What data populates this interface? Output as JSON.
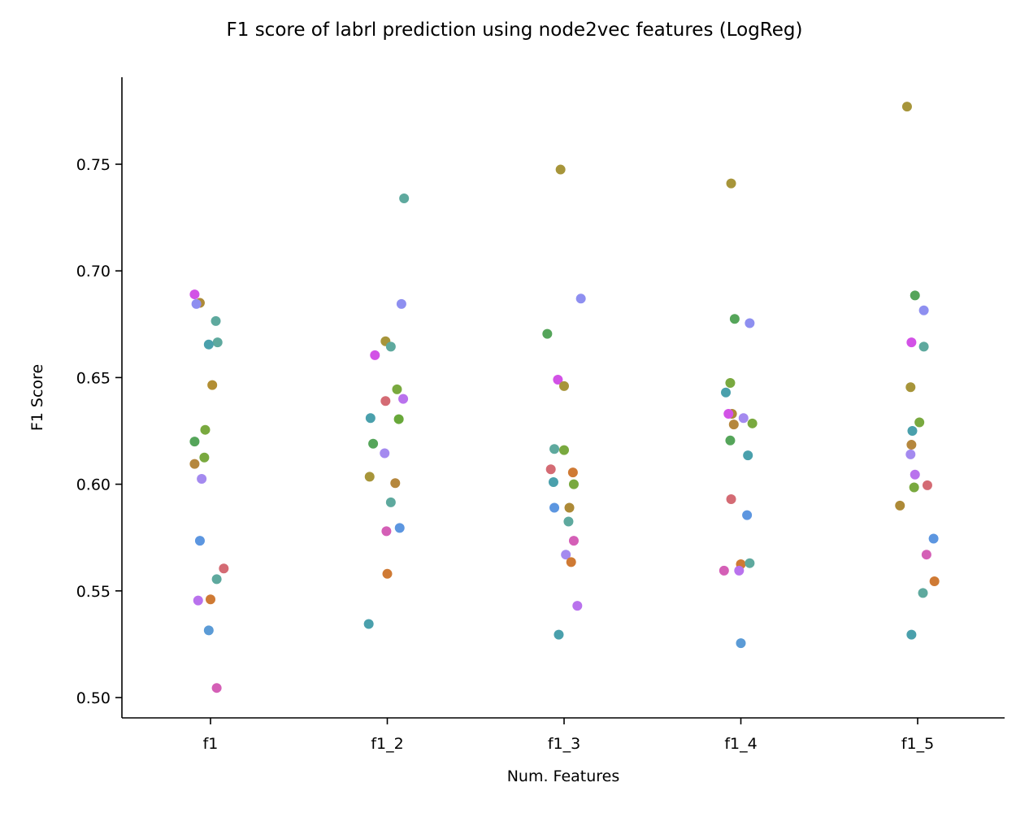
{
  "chart_data": {
    "type": "scatter",
    "title": "F1 score of labrl prediction using node2vec features (LogReg)",
    "xlabel": "Num. Features",
    "ylabel": "F1 Score",
    "categories": [
      "f1",
      "f1_2",
      "f1_3",
      "f1_4",
      "f1_5"
    ],
    "ylim": [
      0.49,
      0.79
    ],
    "yticks": [
      0.5,
      0.55,
      0.6,
      0.65,
      0.7,
      0.75
    ],
    "ytick_labels": [
      "0.50",
      "0.55",
      "0.60",
      "0.65",
      "0.70",
      "0.75"
    ],
    "grid": false,
    "points": [
      {
        "cat": 0,
        "jitter": -0.09,
        "value": 0.689,
        "color": "#d252e6"
      },
      {
        "cat": 0,
        "jitter": -0.06,
        "value": 0.685,
        "color": "#ad8a37"
      },
      {
        "cat": 0,
        "jitter": -0.08,
        "value": 0.6845,
        "color": "#8e8ff0"
      },
      {
        "cat": 0,
        "jitter": 0.03,
        "value": 0.6765,
        "color": "#5ea99e"
      },
      {
        "cat": 0,
        "jitter": 0.04,
        "value": 0.6665,
        "color": "#5ea99e"
      },
      {
        "cat": 0,
        "jitter": -0.01,
        "value": 0.6655,
        "color": "#4aa0ac"
      },
      {
        "cat": 0,
        "jitter": 0.01,
        "value": 0.6465,
        "color": "#b28e33"
      },
      {
        "cat": 0,
        "jitter": -0.03,
        "value": 0.6255,
        "color": "#79a93f"
      },
      {
        "cat": 0,
        "jitter": -0.09,
        "value": 0.62,
        "color": "#55a55a"
      },
      {
        "cat": 0,
        "jitter": -0.035,
        "value": 0.6125,
        "color": "#79a93f"
      },
      {
        "cat": 0,
        "jitter": -0.09,
        "value": 0.6095,
        "color": "#b5873d"
      },
      {
        "cat": 0,
        "jitter": -0.05,
        "value": 0.6025,
        "color": "#a48aef"
      },
      {
        "cat": 0,
        "jitter": -0.06,
        "value": 0.5735,
        "color": "#5c96e0"
      },
      {
        "cat": 0,
        "jitter": 0.075,
        "value": 0.5605,
        "color": "#d46b74"
      },
      {
        "cat": 0,
        "jitter": 0.035,
        "value": 0.5555,
        "color": "#5ea99e"
      },
      {
        "cat": 0,
        "jitter": 0.0,
        "value": 0.546,
        "color": "#cf7a34"
      },
      {
        "cat": 0,
        "jitter": -0.07,
        "value": 0.5455,
        "color": "#b972ed"
      },
      {
        "cat": 0,
        "jitter": -0.01,
        "value": 0.5315,
        "color": "#5b9bd6"
      },
      {
        "cat": 0,
        "jitter": 0.035,
        "value": 0.5045,
        "color": "#d45fb6"
      },
      {
        "cat": 1,
        "jitter": 0.095,
        "value": 0.734,
        "color": "#5ea99e"
      },
      {
        "cat": 1,
        "jitter": 0.08,
        "value": 0.6845,
        "color": "#8e8ff0"
      },
      {
        "cat": 1,
        "jitter": -0.01,
        "value": 0.667,
        "color": "#a7953a"
      },
      {
        "cat": 1,
        "jitter": 0.02,
        "value": 0.6645,
        "color": "#5ea99e"
      },
      {
        "cat": 1,
        "jitter": -0.07,
        "value": 0.6605,
        "color": "#d252e6"
      },
      {
        "cat": 1,
        "jitter": 0.055,
        "value": 0.6445,
        "color": "#79a93f"
      },
      {
        "cat": 1,
        "jitter": 0.09,
        "value": 0.64,
        "color": "#b972ed"
      },
      {
        "cat": 1,
        "jitter": -0.01,
        "value": 0.639,
        "color": "#d46b74"
      },
      {
        "cat": 1,
        "jitter": -0.095,
        "value": 0.631,
        "color": "#4aa0ac"
      },
      {
        "cat": 1,
        "jitter": 0.065,
        "value": 0.6305,
        "color": "#68a83a"
      },
      {
        "cat": 1,
        "jitter": -0.08,
        "value": 0.619,
        "color": "#55a55a"
      },
      {
        "cat": 1,
        "jitter": -0.015,
        "value": 0.6145,
        "color": "#a48aef"
      },
      {
        "cat": 1,
        "jitter": -0.1,
        "value": 0.6035,
        "color": "#a7953a"
      },
      {
        "cat": 1,
        "jitter": 0.045,
        "value": 0.6005,
        "color": "#b5873d"
      },
      {
        "cat": 1,
        "jitter": 0.02,
        "value": 0.5915,
        "color": "#5ea99e"
      },
      {
        "cat": 1,
        "jitter": 0.07,
        "value": 0.5795,
        "color": "#5c96e0"
      },
      {
        "cat": 1,
        "jitter": -0.005,
        "value": 0.578,
        "color": "#d45fb6"
      },
      {
        "cat": 1,
        "jitter": 0.0,
        "value": 0.558,
        "color": "#cf7a34"
      },
      {
        "cat": 1,
        "jitter": -0.105,
        "value": 0.5345,
        "color": "#4aa0ac"
      },
      {
        "cat": 2,
        "jitter": -0.02,
        "value": 0.7475,
        "color": "#a7953a"
      },
      {
        "cat": 2,
        "jitter": 0.095,
        "value": 0.687,
        "color": "#8e8ff0"
      },
      {
        "cat": 2,
        "jitter": -0.095,
        "value": 0.6705,
        "color": "#55a55a"
      },
      {
        "cat": 2,
        "jitter": -0.035,
        "value": 0.649,
        "color": "#d252e6"
      },
      {
        "cat": 2,
        "jitter": 0.0,
        "value": 0.646,
        "color": "#a7953a"
      },
      {
        "cat": 2,
        "jitter": -0.055,
        "value": 0.6165,
        "color": "#5ea99e"
      },
      {
        "cat": 2,
        "jitter": 0.0,
        "value": 0.616,
        "color": "#79a93f"
      },
      {
        "cat": 2,
        "jitter": -0.075,
        "value": 0.607,
        "color": "#d46b74"
      },
      {
        "cat": 2,
        "jitter": 0.05,
        "value": 0.6055,
        "color": "#cf7a34"
      },
      {
        "cat": 2,
        "jitter": -0.06,
        "value": 0.601,
        "color": "#4aa0ac"
      },
      {
        "cat": 2,
        "jitter": 0.055,
        "value": 0.6,
        "color": "#79a93f"
      },
      {
        "cat": 2,
        "jitter": -0.055,
        "value": 0.589,
        "color": "#5c96e0"
      },
      {
        "cat": 2,
        "jitter": 0.03,
        "value": 0.589,
        "color": "#ad8a37"
      },
      {
        "cat": 2,
        "jitter": 0.025,
        "value": 0.5825,
        "color": "#5ea99e"
      },
      {
        "cat": 2,
        "jitter": 0.055,
        "value": 0.5735,
        "color": "#d45fb6"
      },
      {
        "cat": 2,
        "jitter": 0.01,
        "value": 0.567,
        "color": "#a48aef"
      },
      {
        "cat": 2,
        "jitter": 0.04,
        "value": 0.5635,
        "color": "#cf7a34"
      },
      {
        "cat": 2,
        "jitter": 0.075,
        "value": 0.543,
        "color": "#b972ed"
      },
      {
        "cat": 2,
        "jitter": -0.03,
        "value": 0.5295,
        "color": "#4aa0ac"
      },
      {
        "cat": 3,
        "jitter": -0.055,
        "value": 0.741,
        "color": "#a7953a"
      },
      {
        "cat": 3,
        "jitter": -0.035,
        "value": 0.6775,
        "color": "#55a55a"
      },
      {
        "cat": 3,
        "jitter": 0.05,
        "value": 0.6755,
        "color": "#8e8ff0"
      },
      {
        "cat": 3,
        "jitter": -0.06,
        "value": 0.6475,
        "color": "#79a93f"
      },
      {
        "cat": 3,
        "jitter": -0.085,
        "value": 0.643,
        "color": "#4aa0ac"
      },
      {
        "cat": 3,
        "jitter": -0.05,
        "value": 0.633,
        "color": "#ad8a37"
      },
      {
        "cat": 3,
        "jitter": -0.07,
        "value": 0.633,
        "color": "#d252e6"
      },
      {
        "cat": 3,
        "jitter": 0.015,
        "value": 0.631,
        "color": "#a48aef"
      },
      {
        "cat": 3,
        "jitter": 0.065,
        "value": 0.6285,
        "color": "#79a93f"
      },
      {
        "cat": 3,
        "jitter": -0.04,
        "value": 0.628,
        "color": "#b5873d"
      },
      {
        "cat": 3,
        "jitter": -0.06,
        "value": 0.6205,
        "color": "#55a55a"
      },
      {
        "cat": 3,
        "jitter": 0.04,
        "value": 0.6135,
        "color": "#4aa0ac"
      },
      {
        "cat": 3,
        "jitter": -0.055,
        "value": 0.593,
        "color": "#d46b74"
      },
      {
        "cat": 3,
        "jitter": 0.035,
        "value": 0.5855,
        "color": "#5c96e0"
      },
      {
        "cat": 3,
        "jitter": 0.0,
        "value": 0.5625,
        "color": "#cf7a34"
      },
      {
        "cat": 3,
        "jitter": 0.05,
        "value": 0.563,
        "color": "#5ea99e"
      },
      {
        "cat": 3,
        "jitter": -0.095,
        "value": 0.5595,
        "color": "#d45fb6"
      },
      {
        "cat": 3,
        "jitter": -0.01,
        "value": 0.5595,
        "color": "#b972ed"
      },
      {
        "cat": 3,
        "jitter": 0.0,
        "value": 0.5255,
        "color": "#5b9bd6"
      },
      {
        "cat": 4,
        "jitter": -0.06,
        "value": 0.777,
        "color": "#a7953a"
      },
      {
        "cat": 4,
        "jitter": -0.015,
        "value": 0.6885,
        "color": "#55a55a"
      },
      {
        "cat": 4,
        "jitter": 0.035,
        "value": 0.6815,
        "color": "#8e8ff0"
      },
      {
        "cat": 4,
        "jitter": -0.035,
        "value": 0.6665,
        "color": "#d252e6"
      },
      {
        "cat": 4,
        "jitter": 0.035,
        "value": 0.6645,
        "color": "#5ea99e"
      },
      {
        "cat": 4,
        "jitter": -0.04,
        "value": 0.6455,
        "color": "#a7953a"
      },
      {
        "cat": 4,
        "jitter": 0.01,
        "value": 0.629,
        "color": "#79a93f"
      },
      {
        "cat": 4,
        "jitter": -0.03,
        "value": 0.625,
        "color": "#4aa0ac"
      },
      {
        "cat": 4,
        "jitter": -0.035,
        "value": 0.6185,
        "color": "#b5873d"
      },
      {
        "cat": 4,
        "jitter": -0.04,
        "value": 0.614,
        "color": "#a48aef"
      },
      {
        "cat": 4,
        "jitter": -0.015,
        "value": 0.6045,
        "color": "#b972ed"
      },
      {
        "cat": 4,
        "jitter": 0.055,
        "value": 0.5995,
        "color": "#d46b74"
      },
      {
        "cat": 4,
        "jitter": -0.02,
        "value": 0.5985,
        "color": "#79a93f"
      },
      {
        "cat": 4,
        "jitter": -0.1,
        "value": 0.59,
        "color": "#ad8a37"
      },
      {
        "cat": 4,
        "jitter": 0.09,
        "value": 0.5745,
        "color": "#5c96e0"
      },
      {
        "cat": 4,
        "jitter": 0.05,
        "value": 0.567,
        "color": "#d45fb6"
      },
      {
        "cat": 4,
        "jitter": 0.095,
        "value": 0.5545,
        "color": "#cf7a34"
      },
      {
        "cat": 4,
        "jitter": 0.03,
        "value": 0.549,
        "color": "#5ea99e"
      },
      {
        "cat": 4,
        "jitter": -0.035,
        "value": 0.5295,
        "color": "#4aa0ac"
      }
    ]
  }
}
